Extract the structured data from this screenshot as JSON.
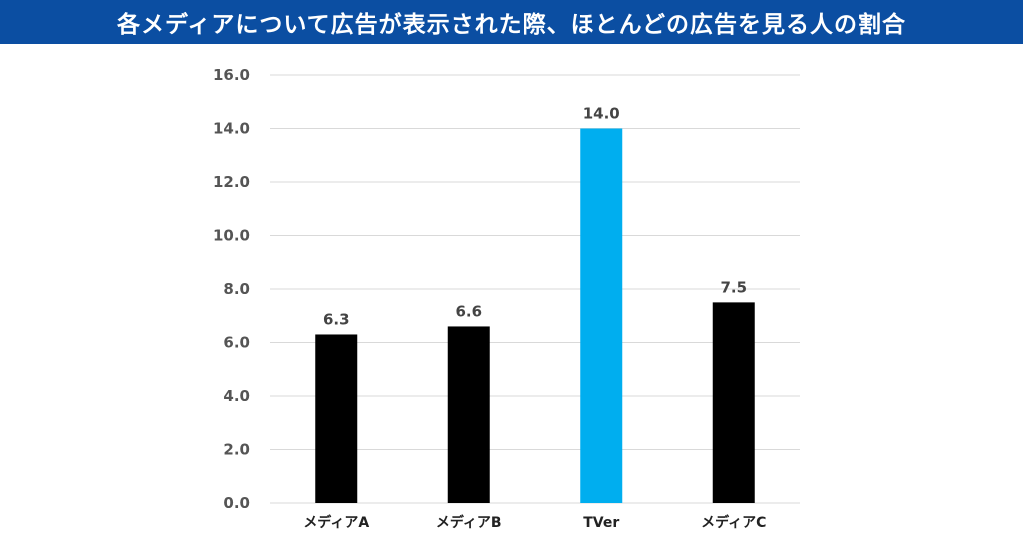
{
  "title": "各メディアについて広告が表示された際、ほとんどの広告を見る人の割合",
  "colors": {
    "title_bar": "#0b4ea2",
    "title_text": "#ffffff",
    "bar_default": "#000000",
    "bar_highlight": "#00aeef",
    "grid": "#d9d9d9"
  },
  "chart_data": {
    "type": "bar",
    "title": "各メディアについて広告が表示された際、ほとんどの広告を見る人の割合",
    "categories": [
      "メディアA",
      "メディアB",
      "TVer",
      "メディアC"
    ],
    "values": [
      6.3,
      6.6,
      14.0,
      7.5
    ],
    "value_labels": [
      "6.3",
      "6.6",
      "14.0",
      "7.5"
    ],
    "highlight_category": "TVer",
    "ylim": [
      0,
      16
    ],
    "yticks": [
      "0.0",
      "2.0",
      "4.0",
      "6.0",
      "8.0",
      "10.0",
      "12.0",
      "14.0",
      "16.0"
    ],
    "grid": true,
    "legend": "none",
    "xlabel": "",
    "ylabel": ""
  }
}
